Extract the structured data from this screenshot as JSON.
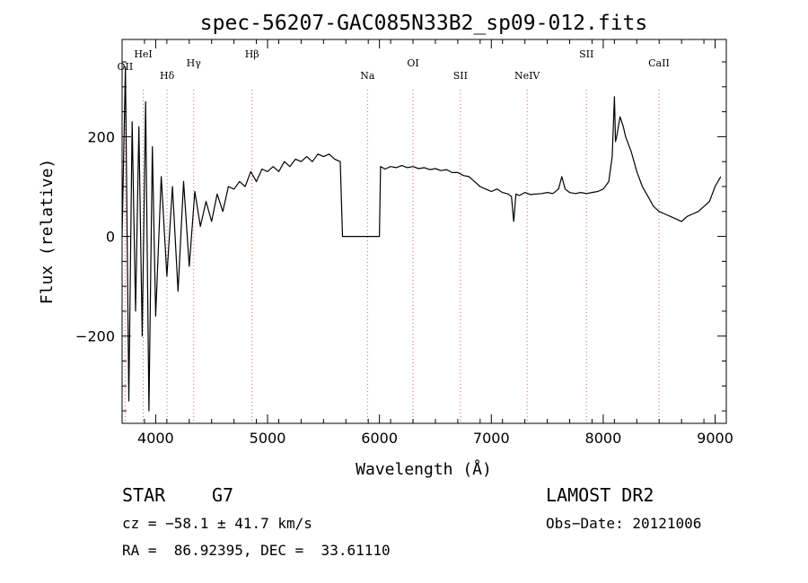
{
  "chart_data": {
    "type": "line",
    "title": "spec-56207-GAC085N33B2_sp09-012.fits",
    "xlabel": "Wavelength (Å)",
    "ylabel": "Flux (relative)",
    "xlim": [
      3700,
      9100
    ],
    "ylim": [
      -375,
      395
    ],
    "xticks": [
      4000,
      5000,
      6000,
      7000,
      8000,
      9000
    ],
    "yticks": [
      -200,
      0,
      200
    ],
    "lines": [
      {
        "label": "OII",
        "wavelength": 3727
      },
      {
        "label": "HeI",
        "wavelength": 3889
      },
      {
        "label": "Hδ",
        "wavelength": 4102
      },
      {
        "label": "Hγ",
        "wavelength": 4340
      },
      {
        "label": "Hβ",
        "wavelength": 4861
      },
      {
        "label": "Na",
        "wavelength": 5893
      },
      {
        "label": "OI",
        "wavelength": 6300
      },
      {
        "label": "SII",
        "wavelength": 6724
      },
      {
        "label": "NeIV",
        "wavelength": 7320
      },
      {
        "label": "SII",
        "wavelength": 7850
      },
      {
        "label": "CaII",
        "wavelength": 8498
      }
    ],
    "series": [
      {
        "x": [
          3700,
          3730,
          3760,
          3790,
          3820,
          3850,
          3880,
          3910,
          3940,
          3970,
          4000,
          4050,
          4100,
          4150,
          4200,
          4250,
          4300,
          4350,
          4400,
          4450,
          4500,
          4550,
          4600,
          4650,
          4700,
          4750,
          4800,
          4850,
          4900,
          4950,
          5000,
          5050,
          5100,
          5150,
          5200,
          5250,
          5300,
          5350,
          5400,
          5450,
          5500,
          5550,
          5600,
          5650,
          5670,
          5680,
          6000,
          6010,
          6050,
          6100,
          6150,
          6200,
          6250,
          6300,
          6350,
          6400,
          6450,
          6500,
          6550,
          6600,
          6650,
          6700,
          6750,
          6800,
          6850,
          6900,
          6950,
          7000,
          7050,
          7100,
          7150,
          7180,
          7200,
          7220,
          7250,
          7300,
          7350,
          7400,
          7450,
          7500,
          7550,
          7600,
          7630,
          7660,
          7700,
          7750,
          7800,
          7850,
          7900,
          7950,
          8000,
          8050,
          8080,
          8100,
          8110,
          8120,
          8150,
          8180,
          8200,
          8250,
          8300,
          8350,
          8400,
          8450,
          8500,
          8550,
          8600,
          8650,
          8700,
          8750,
          8800,
          8850,
          8900,
          8950,
          9000,
          9050
        ],
        "y": [
          0,
          340,
          -330,
          230,
          -150,
          220,
          -200,
          270,
          -350,
          180,
          -160,
          120,
          -80,
          100,
          -110,
          110,
          -60,
          90,
          20,
          70,
          30,
          85,
          50,
          100,
          95,
          110,
          100,
          130,
          110,
          135,
          130,
          140,
          130,
          150,
          140,
          155,
          150,
          160,
          150,
          165,
          160,
          165,
          155,
          150,
          0,
          0,
          0,
          140,
          135,
          140,
          138,
          142,
          138,
          140,
          136,
          138,
          134,
          136,
          132,
          134,
          128,
          128,
          122,
          120,
          110,
          100,
          95,
          90,
          95,
          88,
          85,
          80,
          30,
          85,
          82,
          88,
          84,
          85,
          86,
          88,
          86,
          95,
          120,
          95,
          88,
          86,
          88,
          86,
          88,
          90,
          95,
          110,
          160,
          280,
          190,
          200,
          240,
          220,
          200,
          170,
          130,
          100,
          80,
          60,
          50,
          45,
          40,
          35,
          30,
          40,
          45,
          50,
          60,
          70,
          100,
          120
        ]
      }
    ]
  },
  "info": {
    "object_type": "STAR",
    "subclass": "G7",
    "survey": "LAMOST DR2",
    "cz": "cz = −58.1 ± 41.7 km/s",
    "obs_date": "Obs−Date: 20121006",
    "coords": "RA =  86.92395, DEC =  33.61110"
  }
}
